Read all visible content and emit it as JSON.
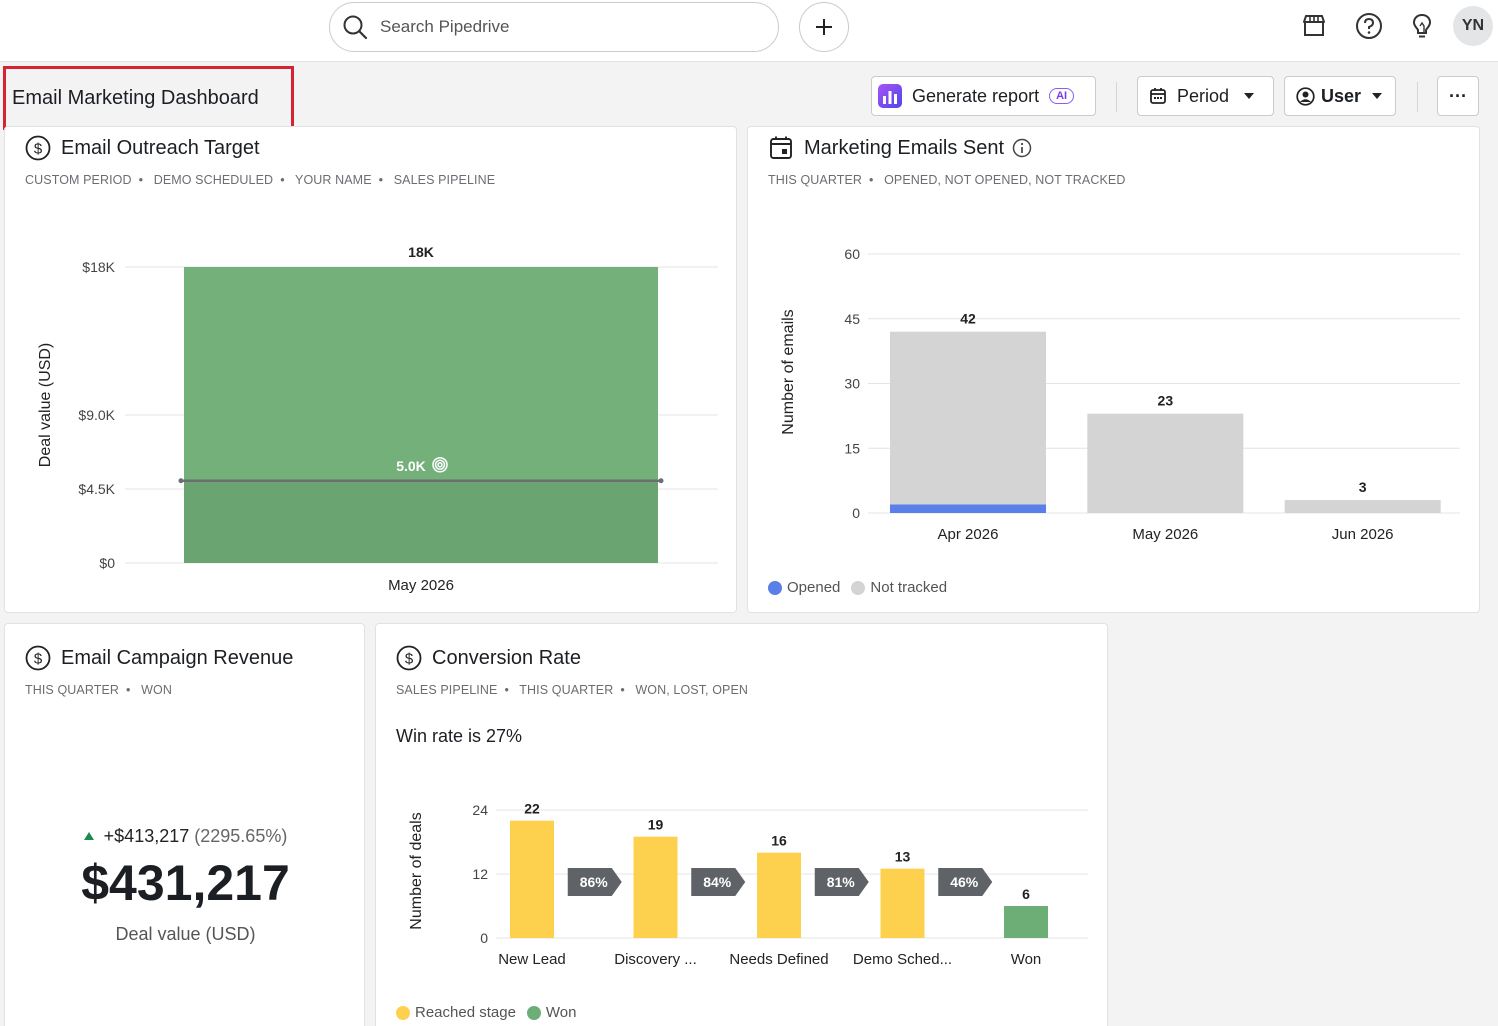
{
  "topbar": {
    "search_placeholder": "Search Pipedrive",
    "avatar_initials": "YN",
    "icons": [
      "search-icon",
      "plus-icon",
      "marketplace-icon",
      "help-icon",
      "lightbulb-icon"
    ]
  },
  "header": {
    "title": "Email Marketing Dashboard",
    "generate_report_label": "Generate report",
    "ai_badge": "AI",
    "period_label": "Period",
    "user_label": "User",
    "more_label": "···"
  },
  "cards": {
    "outreach": {
      "title": "Email Outreach Target",
      "filters": [
        "CUSTOM PERIOD",
        "DEMO SCHEDULED",
        "YOUR NAME",
        "SALES PIPELINE"
      ]
    },
    "emails_sent": {
      "title": "Marketing Emails Sent",
      "filters": [
        "THIS QUARTER",
        "OPENED, NOT OPENED, NOT TRACKED"
      ],
      "legend": [
        "Opened",
        "Not tracked"
      ]
    },
    "revenue": {
      "title": "Email Campaign Revenue",
      "filters": [
        "THIS QUARTER",
        "WON"
      ],
      "change": "+$413,217",
      "change_pct": "(2295.65%)",
      "value": "$431,217",
      "value_label": "Deal value (USD)"
    },
    "conversion": {
      "title": "Conversion Rate",
      "filters": [
        "SALES PIPELINE",
        "THIS QUARTER",
        "WON, LOST, OPEN"
      ],
      "win_rate": "Win rate is 27%",
      "legend": [
        "Reached stage",
        "Won"
      ]
    }
  },
  "chart_data": [
    {
      "type": "bar",
      "ylabel": "Deal value (USD)",
      "categories": [
        "May 2026"
      ],
      "values": [
        18000
      ],
      "data_labels": [
        "18K"
      ],
      "target": 5000,
      "target_label": "5.0K",
      "ytick_labels": [
        "$0",
        "$4.5K",
        "$9.0K",
        "$18K"
      ],
      "yticks": [
        0,
        4500,
        9000,
        18000
      ],
      "ylim": [
        0,
        18000
      ],
      "colors": {
        "above_target": "#74b07a",
        "below_target": "#6aa571",
        "target_line": "#6b6e72"
      }
    },
    {
      "type": "bar",
      "ylabel": "Number of emails",
      "categories": [
        "Apr 2026",
        "May 2026",
        "Jun 2026"
      ],
      "series": [
        {
          "name": "Opened",
          "values": [
            2,
            0,
            0
          ],
          "color": "#5b7fe8"
        },
        {
          "name": "Not tracked",
          "values": [
            40,
            23,
            3
          ],
          "color": "#d4d4d4"
        }
      ],
      "totals": [
        42,
        23,
        3
      ],
      "yticks": [
        0,
        15,
        30,
        45,
        60
      ],
      "ylim": [
        0,
        60
      ],
      "grid": true,
      "legend": "bottom-left"
    },
    {
      "type": "bar",
      "ylabel": "Number of deals",
      "categories": [
        "New Lead",
        "Discovery ...",
        "Needs Defined",
        "Demo Sched...",
        "Won"
      ],
      "values": [
        22,
        19,
        16,
        13,
        6
      ],
      "stage_types": [
        "Reached stage",
        "Reached stage",
        "Reached stage",
        "Reached stage",
        "Won"
      ],
      "conversions": [
        "86%",
        "84%",
        "81%",
        "46%"
      ],
      "yticks": [
        0,
        12,
        24
      ],
      "ylim": [
        0,
        24
      ],
      "legend": "bottom-left",
      "colors": {
        "Reached stage": "#fdd04e",
        "Won": "#6cae75",
        "conversion_arrow": "#5f6266"
      }
    }
  ]
}
